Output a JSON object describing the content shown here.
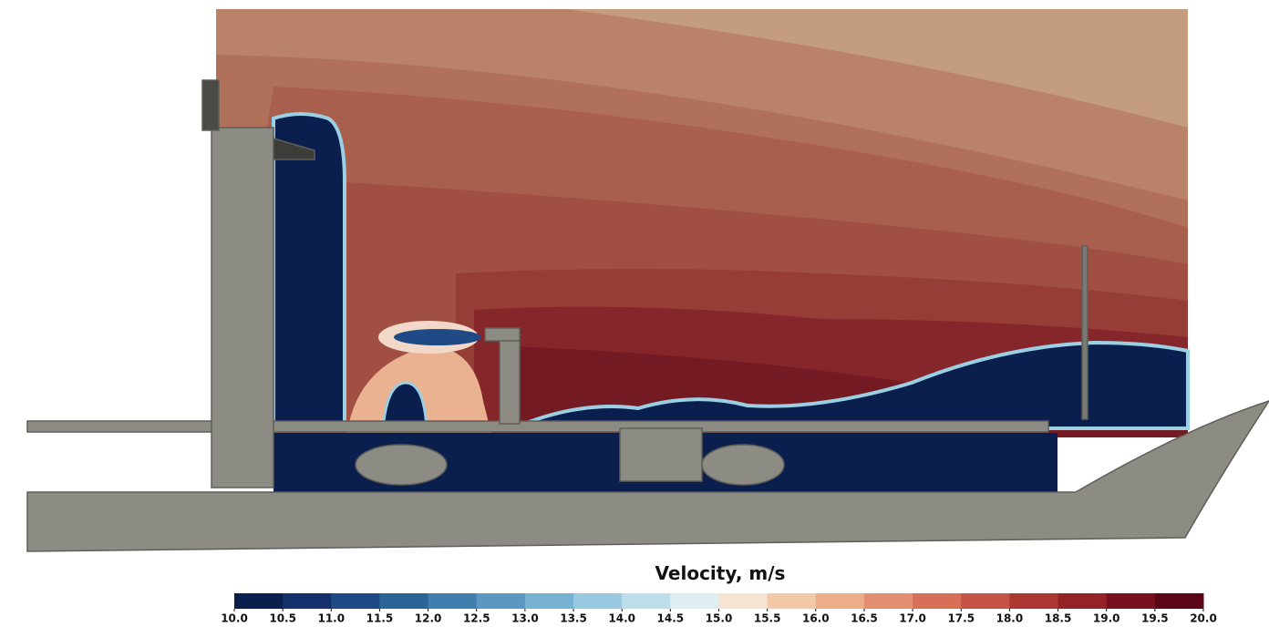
{
  "colorbar": {
    "title": "Velocity, m/s",
    "range": [
      10,
      20
    ],
    "ticks": [
      {
        "value": 10,
        "label": "10.0"
      },
      {
        "value": 10.5,
        "label": "10.5"
      },
      {
        "value": 11,
        "label": "11.0"
      },
      {
        "value": 11.5,
        "label": "11.5"
      },
      {
        "value": 12,
        "label": "12.0"
      },
      {
        "value": 12.5,
        "label": "12.5"
      },
      {
        "value": 13,
        "label": "13.0"
      },
      {
        "value": 13.5,
        "label": "13.5"
      },
      {
        "value": 14,
        "label": "14.0"
      },
      {
        "value": 14.5,
        "label": "14.5"
      },
      {
        "value": 15,
        "label": "15.0"
      },
      {
        "value": 15.5,
        "label": "15.5"
      },
      {
        "value": 16,
        "label": "16.0"
      },
      {
        "value": 16.5,
        "label": "16.5"
      },
      {
        "value": 17,
        "label": "17.0"
      },
      {
        "value": 17.5,
        "label": "17.5"
      },
      {
        "value": 18,
        "label": "18.0"
      },
      {
        "value": 18.5,
        "label": "18.5"
      },
      {
        "value": 19,
        "label": "19.0"
      },
      {
        "value": 19.5,
        "label": "19.5"
      },
      {
        "value": 20,
        "label": "20.0"
      }
    ],
    "colors": [
      "#0b1f4e",
      "#15306b",
      "#1f4a86",
      "#2a6497",
      "#3f7fae",
      "#5a98c2",
      "#78b2d3",
      "#98c9e0",
      "#bcdde9",
      "#dfeef2",
      "#f6e4d2",
      "#f2c8a8",
      "#eeac89",
      "#e48f70",
      "#d87058",
      "#c55345",
      "#ad3833",
      "#942227",
      "#790f1e",
      "#5a0518"
    ]
  }
}
